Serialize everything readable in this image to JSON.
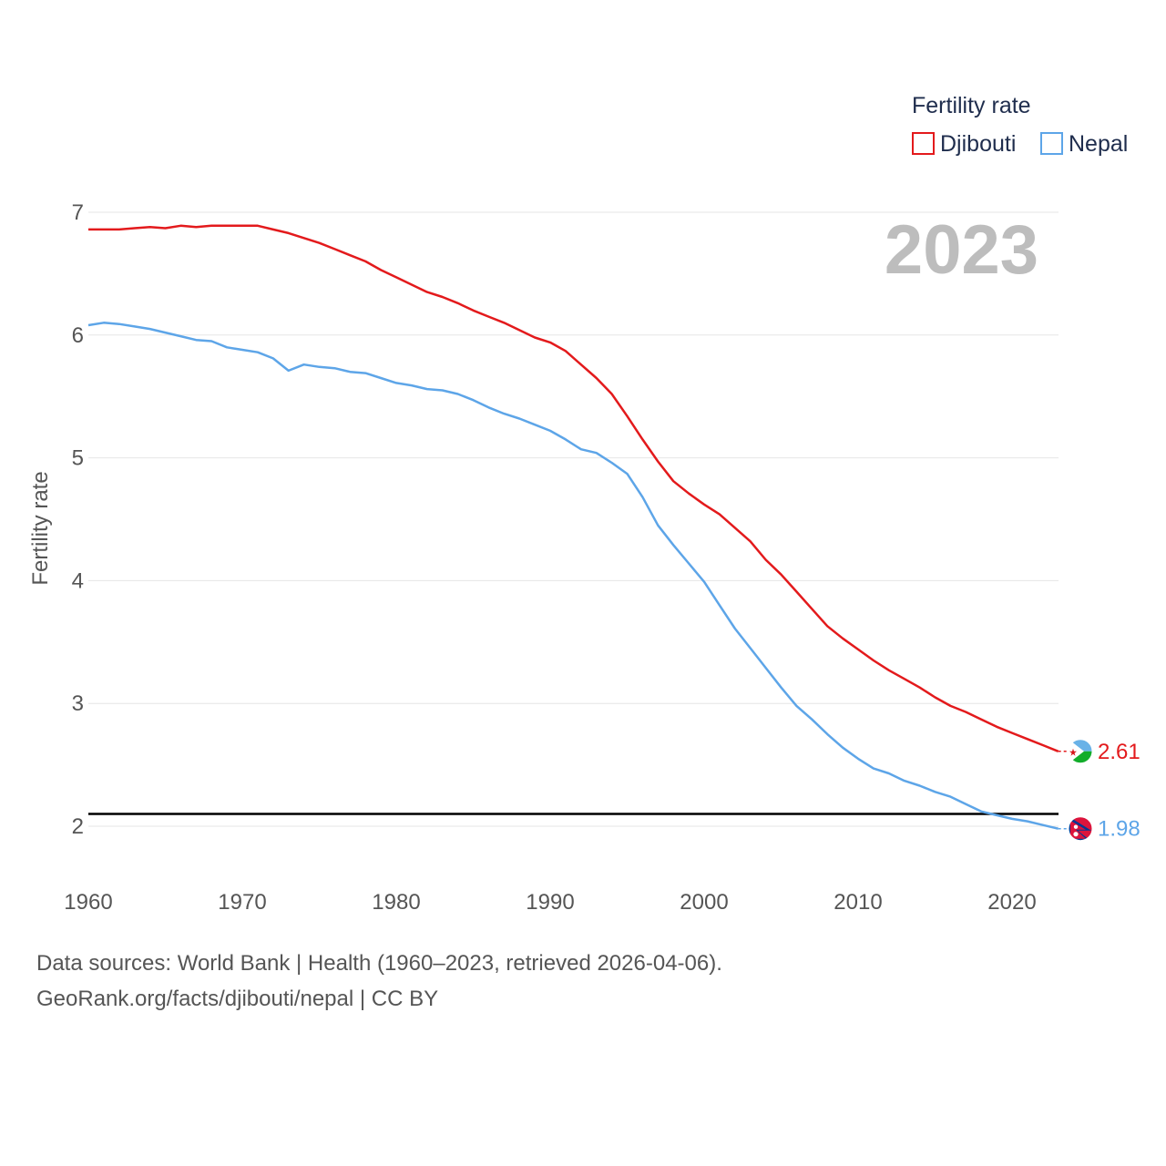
{
  "chart_data": {
    "type": "line",
    "year_label": "2023",
    "ylabel": "Fertility rate",
    "xlim": [
      1960,
      2023
    ],
    "ylim": [
      1.6,
      7.1
    ],
    "x_ticks": [
      1960,
      1970,
      1980,
      1990,
      2000,
      2010,
      2020
    ],
    "y_ticks": [
      2,
      3,
      4,
      5,
      6,
      7
    ],
    "grid": true,
    "legend": {
      "title": "Fertility rate",
      "position": "top-right",
      "entries": [
        {
          "name": "Djibouti",
          "color": "#e31a1c"
        },
        {
          "name": "Nepal",
          "color": "#5da5e8"
        }
      ]
    },
    "reference_line": {
      "value": 2.1,
      "color": "#000000"
    },
    "series": [
      {
        "name": "Djibouti",
        "color": "#e31a1c",
        "end_label": "2.61",
        "flag_icon": "djibouti-flag-icon",
        "x": [
          1960,
          1961,
          1962,
          1963,
          1964,
          1965,
          1966,
          1967,
          1968,
          1969,
          1970,
          1971,
          1972,
          1973,
          1974,
          1975,
          1976,
          1977,
          1978,
          1979,
          1980,
          1981,
          1982,
          1983,
          1984,
          1985,
          1986,
          1987,
          1988,
          1989,
          1990,
          1991,
          1992,
          1993,
          1994,
          1995,
          1996,
          1997,
          1998,
          1999,
          2000,
          2001,
          2002,
          2003,
          2004,
          2005,
          2006,
          2007,
          2008,
          2009,
          2010,
          2011,
          2012,
          2013,
          2014,
          2015,
          2016,
          2017,
          2018,
          2019,
          2020,
          2021,
          2022,
          2023
        ],
        "values": [
          6.86,
          6.86,
          6.86,
          6.87,
          6.88,
          6.87,
          6.89,
          6.88,
          6.89,
          6.89,
          6.89,
          6.89,
          6.86,
          6.83,
          6.79,
          6.75,
          6.7,
          6.65,
          6.6,
          6.53,
          6.47,
          6.41,
          6.35,
          6.31,
          6.26,
          6.2,
          6.15,
          6.1,
          6.04,
          5.98,
          5.94,
          5.87,
          5.76,
          5.65,
          5.52,
          5.34,
          5.15,
          4.97,
          4.81,
          4.71,
          4.62,
          4.54,
          4.43,
          4.32,
          4.17,
          4.05,
          3.91,
          3.77,
          3.63,
          3.53,
          3.44,
          3.35,
          3.27,
          3.2,
          3.13,
          3.05,
          2.98,
          2.93,
          2.87,
          2.81,
          2.76,
          2.71,
          2.66,
          2.61
        ]
      },
      {
        "name": "Nepal",
        "color": "#5da5e8",
        "end_label": "1.98",
        "flag_icon": "nepal-flag-icon",
        "x": [
          1960,
          1961,
          1962,
          1963,
          1964,
          1965,
          1966,
          1967,
          1968,
          1969,
          1970,
          1971,
          1972,
          1973,
          1974,
          1975,
          1976,
          1977,
          1978,
          1979,
          1980,
          1981,
          1982,
          1983,
          1984,
          1985,
          1986,
          1987,
          1988,
          1989,
          1990,
          1991,
          1992,
          1993,
          1994,
          1995,
          1996,
          1997,
          1998,
          1999,
          2000,
          2001,
          2002,
          2003,
          2004,
          2005,
          2006,
          2007,
          2008,
          2009,
          2010,
          2011,
          2012,
          2013,
          2014,
          2015,
          2016,
          2017,
          2018,
          2019,
          2020,
          2021,
          2022,
          2023
        ],
        "values": [
          6.08,
          6.1,
          6.09,
          6.07,
          6.05,
          6.02,
          5.99,
          5.96,
          5.95,
          5.9,
          5.88,
          5.86,
          5.81,
          5.71,
          5.76,
          5.74,
          5.73,
          5.7,
          5.69,
          5.65,
          5.61,
          5.59,
          5.56,
          5.55,
          5.52,
          5.47,
          5.41,
          5.36,
          5.32,
          5.27,
          5.22,
          5.15,
          5.07,
          5.04,
          4.96,
          4.87,
          4.68,
          4.45,
          4.29,
          4.14,
          3.99,
          3.8,
          3.61,
          3.45,
          3.29,
          3.13,
          2.98,
          2.87,
          2.75,
          2.64,
          2.55,
          2.47,
          2.43,
          2.37,
          2.33,
          2.28,
          2.24,
          2.18,
          2.12,
          2.09,
          2.06,
          2.04,
          2.01,
          1.98
        ]
      }
    ]
  },
  "footer": {
    "source_line_1": "Data sources: World Bank | Health (1960–2023, retrieved 2026-04-06).",
    "source_line_2": "GeoRank.org/facts/djibouti/nepal | CC BY"
  }
}
